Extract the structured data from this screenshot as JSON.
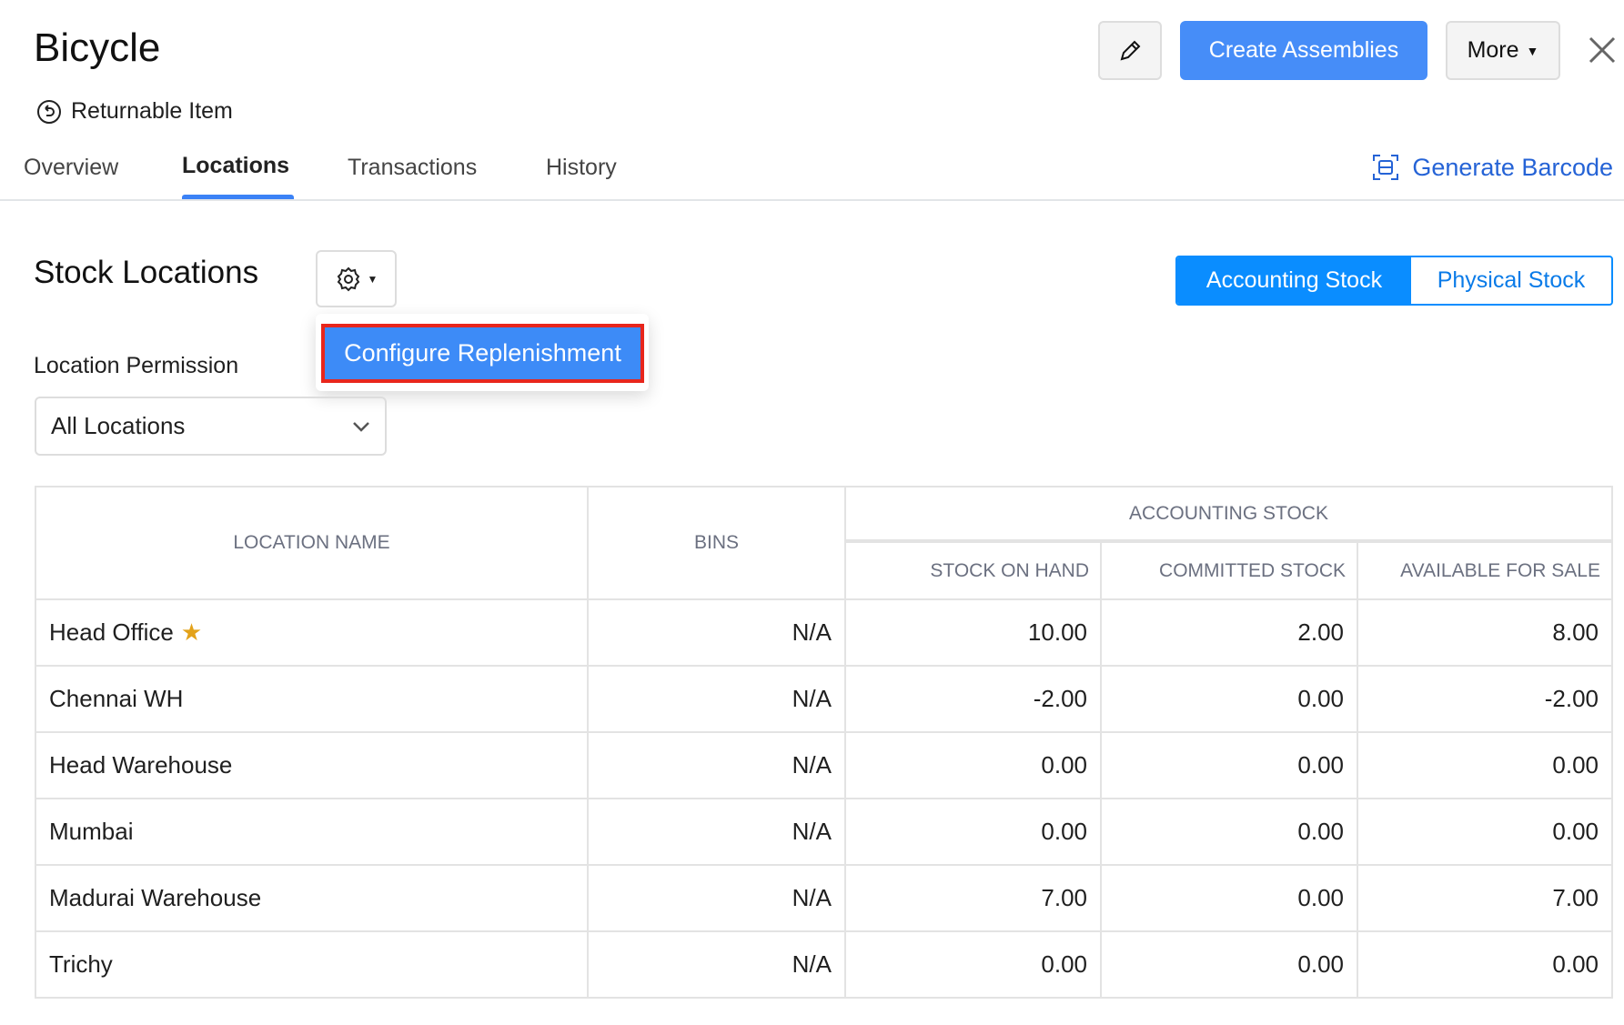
{
  "header": {
    "title": "Bicycle",
    "returnable_label": "Returnable Item",
    "create_label": "Create Assemblies",
    "more_label": "More"
  },
  "tabs": [
    {
      "label": "Overview"
    },
    {
      "label": "Locations",
      "active": true
    },
    {
      "label": "Transactions"
    },
    {
      "label": "History"
    }
  ],
  "barcode_label": "Generate Barcode",
  "section": {
    "title": "Stock Locations",
    "menu_item": "Configure Replenishment"
  },
  "toggle": {
    "accounting": "Accounting Stock",
    "physical": "Physical Stock",
    "selected": "Accounting Stock"
  },
  "permission": {
    "label": "Location Permission",
    "value": "All Locations"
  },
  "table": {
    "headers": {
      "location": "Location Name",
      "bins": "Bins",
      "group": "Accounting Stock",
      "on_hand": "Stock On Hand",
      "committed": "Committed Stock",
      "available": "Available For Sale"
    },
    "rows": [
      {
        "name": "Head Office",
        "primary": true,
        "bins": "N/A",
        "on_hand": "10.00",
        "committed": "2.00",
        "available": "8.00"
      },
      {
        "name": "Chennai WH",
        "bins": "N/A",
        "on_hand": "-2.00",
        "committed": "0.00",
        "available": "-2.00"
      },
      {
        "name": "Head Warehouse",
        "bins": "N/A",
        "on_hand": "0.00",
        "committed": "0.00",
        "available": "0.00"
      },
      {
        "name": "Mumbai",
        "bins": "N/A",
        "on_hand": "0.00",
        "committed": "0.00",
        "available": "0.00"
      },
      {
        "name": "Madurai Warehouse",
        "bins": "N/A",
        "on_hand": "7.00",
        "committed": "0.00",
        "available": "7.00"
      },
      {
        "name": "Trichy",
        "bins": "N/A",
        "on_hand": "0.00",
        "committed": "0.00",
        "available": "0.00"
      }
    ]
  },
  "colors": {
    "primary": "#468df8",
    "toggle": "#0a8dff",
    "link": "#2563d6",
    "highlight_border": "#e8261c",
    "star": "#e3a21a"
  }
}
